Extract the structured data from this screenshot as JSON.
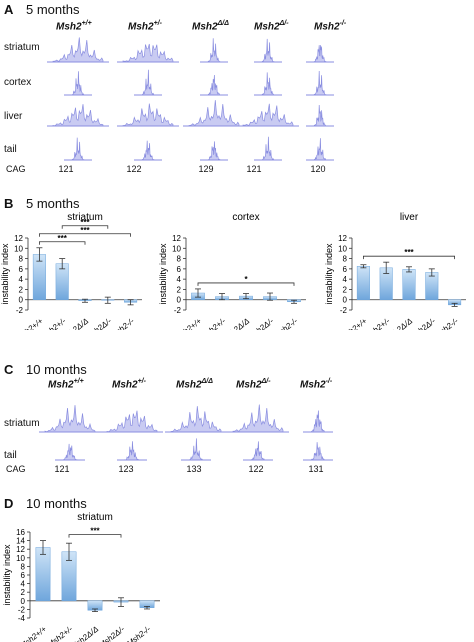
{
  "panels": {
    "A": {
      "letter": "A",
      "title": "5 months"
    },
    "B": {
      "letter": "B",
      "title": "5 months"
    },
    "C": {
      "letter": "C",
      "title": "10 months"
    },
    "D": {
      "letter": "D",
      "title": "10 months"
    }
  },
  "genotypes": [
    {
      "base": "Msh2",
      "sup": "+/+"
    },
    {
      "base": "Msh2",
      "sup": "+/-"
    },
    {
      "base": "Msh2",
      "sup": "Δ/Δ"
    },
    {
      "base": "Msh2",
      "sup": "Δ/-"
    },
    {
      "base": "Msh2",
      "sup": "-/-"
    }
  ],
  "trace_rows_a": [
    "striatum",
    "cortex",
    "liver",
    "tail"
  ],
  "trace_rows_c": [
    "striatum",
    "tail"
  ],
  "cag_label": "CAG",
  "cag_a": [
    "121",
    "122",
    "129",
    "121",
    "120"
  ],
  "cag_c": [
    "121",
    "123",
    "133",
    "122",
    "131"
  ],
  "colors": {
    "trace": "#8a8ee0",
    "trace_fill": "#c9cbf2",
    "bar_top": "#cfe4f7",
    "bar_bottom": "#6fa6dc",
    "error": "#333333"
  },
  "chart_data": [
    {
      "type": "bar",
      "panel": "B",
      "title": "striatum",
      "ylabel": "instability index",
      "categories": [
        "Msh2+/+",
        "Msh2+/-",
        "Msh2Δ/Δ",
        "Msh2Δ/-",
        "Msh2-/-"
      ],
      "values": [
        8.8,
        7.0,
        -0.2,
        -0.1,
        -0.5
      ],
      "errors": [
        1.3,
        1.0,
        0.3,
        0.6,
        0.5
      ],
      "ylim": [
        -2,
        12
      ],
      "yticks": [
        -2,
        0,
        2,
        4,
        6,
        8,
        10,
        12
      ],
      "significance": [
        {
          "from": 0,
          "to": 2,
          "label": "***"
        },
        {
          "from": 0,
          "to": 4,
          "label": "***"
        },
        {
          "from": 1,
          "to": 3,
          "label": "***"
        }
      ]
    },
    {
      "type": "bar",
      "panel": "B",
      "title": "cortex",
      "ylabel": "instability index",
      "categories": [
        "Msh2+/+",
        "Msh2+/-",
        "Msh2Δ/Δ",
        "Msh2Δ/-",
        "Msh2-/-"
      ],
      "values": [
        1.3,
        0.6,
        0.7,
        0.6,
        -0.4
      ],
      "errors": [
        0.8,
        0.6,
        0.5,
        0.7,
        0.3
      ],
      "ylim": [
        -2,
        12
      ],
      "yticks": [
        -2,
        0,
        2,
        4,
        6,
        8,
        10,
        12
      ],
      "significance": [
        {
          "from": 0,
          "to": 4,
          "label": "*"
        }
      ]
    },
    {
      "type": "bar",
      "panel": "B",
      "title": "liver",
      "ylabel": "instability index",
      "categories": [
        "Msh2+/+",
        "Msh2+/-",
        "Msh2Δ/Δ",
        "Msh2Δ/-",
        "Msh2-/-"
      ],
      "values": [
        6.5,
        6.2,
        5.9,
        5.3,
        -1.0
      ],
      "errors": [
        0.3,
        1.1,
        0.5,
        0.7,
        0.3
      ],
      "ylim": [
        -2,
        12
      ],
      "yticks": [
        -2,
        0,
        2,
        4,
        6,
        8,
        10,
        12
      ],
      "significance": [
        {
          "from": 0,
          "to": 4,
          "label": "***"
        }
      ]
    },
    {
      "type": "bar",
      "panel": "D",
      "title": "striatum",
      "ylabel": "instability index",
      "categories": [
        "Msh2+/+",
        "Msh2+/-",
        "Msh2Δ/Δ",
        "Msh2Δ/-",
        "Msh2-/-"
      ],
      "values": [
        12.4,
        11.4,
        -2.2,
        -0.3,
        -1.6
      ],
      "errors": [
        1.6,
        2.0,
        0.3,
        1.0,
        0.3
      ],
      "ylim": [
        -4,
        16
      ],
      "yticks": [
        -4,
        -2,
        0,
        2,
        4,
        6,
        8,
        10,
        12,
        14,
        16
      ],
      "significance": [
        {
          "from": 1,
          "to": 3,
          "label": "***"
        }
      ]
    }
  ]
}
